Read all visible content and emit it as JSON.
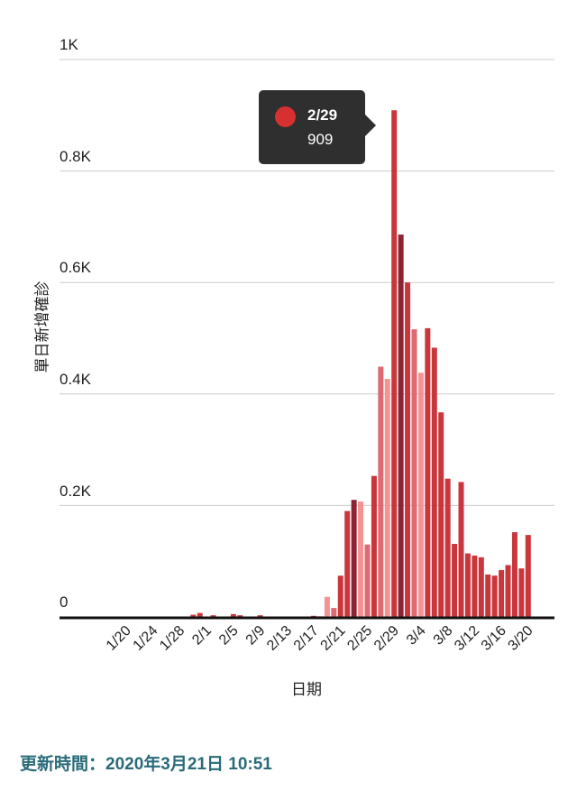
{
  "chart_data": {
    "type": "bar",
    "xlabel": "日期",
    "ylabel": "單日新增確診",
    "ylim": [
      0,
      1000
    ],
    "yticks": [
      "0",
      "0.2K",
      "0.4K",
      "0.6K",
      "0.8K",
      "1K"
    ],
    "ytick_values": [
      0,
      200,
      400,
      600,
      800,
      1000
    ],
    "grid": true,
    "xtick_labels": [
      "1/20",
      "1/24",
      "1/28",
      "2/1",
      "2/5",
      "2/9",
      "2/13",
      "2/17",
      "2/21",
      "2/25",
      "2/29",
      "3/4",
      "3/8",
      "3/12",
      "3/16",
      "3/20"
    ],
    "categories": [
      "1/20",
      "1/21",
      "1/22",
      "1/23",
      "1/24",
      "1/25",
      "1/26",
      "1/27",
      "1/28",
      "1/29",
      "1/30",
      "1/31",
      "2/1",
      "2/2",
      "2/3",
      "2/4",
      "2/5",
      "2/6",
      "2/7",
      "2/8",
      "2/9",
      "2/10",
      "2/11",
      "2/12",
      "2/13",
      "2/14",
      "2/15",
      "2/16",
      "2/17",
      "2/18",
      "2/19",
      "2/20",
      "2/21",
      "2/22",
      "2/23",
      "2/24",
      "2/25",
      "2/26",
      "2/27",
      "2/28",
      "2/29",
      "3/1",
      "3/2",
      "3/3",
      "3/4",
      "3/5",
      "3/6",
      "3/7",
      "3/8",
      "3/9",
      "3/10",
      "3/11",
      "3/12",
      "3/13",
      "3/14",
      "3/15",
      "3/16",
      "3/17",
      "3/18",
      "3/19",
      "3/20"
    ],
    "values": [
      0,
      0,
      0,
      0,
      0,
      0,
      0,
      0,
      0,
      0,
      4,
      7,
      0,
      3,
      0,
      0,
      5,
      3,
      0,
      0,
      3,
      0,
      0,
      0,
      0,
      0,
      0,
      0,
      2,
      1,
      36,
      16,
      74,
      190,
      210,
      207,
      130,
      253,
      449,
      427,
      909,
      686,
      600,
      516,
      438,
      518,
      483,
      367,
      248,
      131,
      242,
      114,
      110,
      107,
      76,
      74,
      84,
      93,
      152,
      87,
      147
    ],
    "shades": [
      "m",
      "m",
      "m",
      "m",
      "m",
      "m",
      "m",
      "m",
      "m",
      "m",
      "m",
      "m",
      "m",
      "m",
      "m",
      "m",
      "m",
      "m",
      "m",
      "m",
      "m",
      "m",
      "m",
      "m",
      "m",
      "m",
      "m",
      "m",
      "m",
      "m",
      "p",
      "k",
      "m",
      "m",
      "d",
      "p",
      "k",
      "m",
      "k",
      "p",
      "m",
      "d",
      "m",
      "k",
      "p",
      "m",
      "m",
      "m",
      "m",
      "m",
      "m",
      "m",
      "m",
      "m",
      "m",
      "m",
      "m",
      "m",
      "m",
      "m",
      "m"
    ],
    "colors": {
      "m": "#c9363b",
      "d": "#8c2433",
      "p": "#f59393",
      "k": "#de6a73",
      "axis": "#111111",
      "grid": "#cccccc"
    }
  },
  "tooltip": {
    "date": "2/29",
    "value": "909",
    "dot_color": "#d63031"
  },
  "footer": "更新時間：2020年3月21日 10:51"
}
